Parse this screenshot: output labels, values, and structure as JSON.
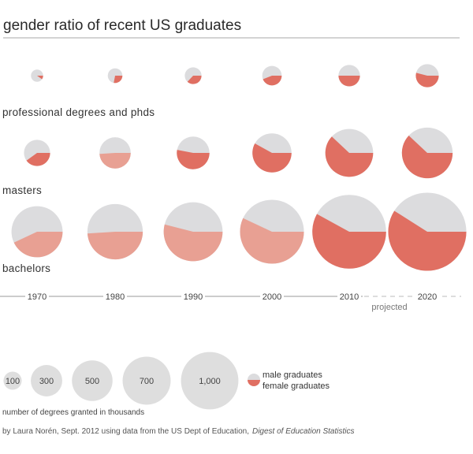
{
  "title": "gender ratio of recent US graduates",
  "chart_data": {
    "type": "pie",
    "years": [
      "1970",
      "1980",
      "1990",
      "2000",
      "2010",
      "2020"
    ],
    "projected_label": "projected",
    "series": [
      {
        "name": "professional degrees and phds",
        "totals": [
          45,
          65,
          85,
          115,
          140,
          160
        ],
        "female_share": [
          0.1,
          0.28,
          0.37,
          0.44,
          0.5,
          0.54
        ]
      },
      {
        "name": "masters",
        "totals": [
          208,
          296,
          324,
          463,
          693,
          780
        ],
        "female_share": [
          0.4,
          0.49,
          0.53,
          0.58,
          0.62,
          0.62
        ]
      },
      {
        "name": "bachelors",
        "totals": [
          792,
          930,
          1052,
          1238,
          1650,
          1850
        ],
        "female_share": [
          0.43,
          0.49,
          0.54,
          0.57,
          0.58,
          0.59
        ]
      }
    ],
    "size_legend": {
      "values": [
        "100",
        "300",
        "500",
        "700",
        "1,000"
      ],
      "caption": "number of degrees granted in thousands"
    },
    "color_legend": {
      "male": "male graduates",
      "female": "female graduates"
    }
  },
  "colors": {
    "male": "#dcdcde",
    "female_bachelors": "#e8a093",
    "female_darker": "#e06f62",
    "legend_bubble": "#dedede",
    "axis": "#999999"
  },
  "credit": {
    "prefix": "by Laura Norén, Sept. 2012 using data from the US Dept of Education,",
    "source": "Digest of Education Statistics"
  }
}
